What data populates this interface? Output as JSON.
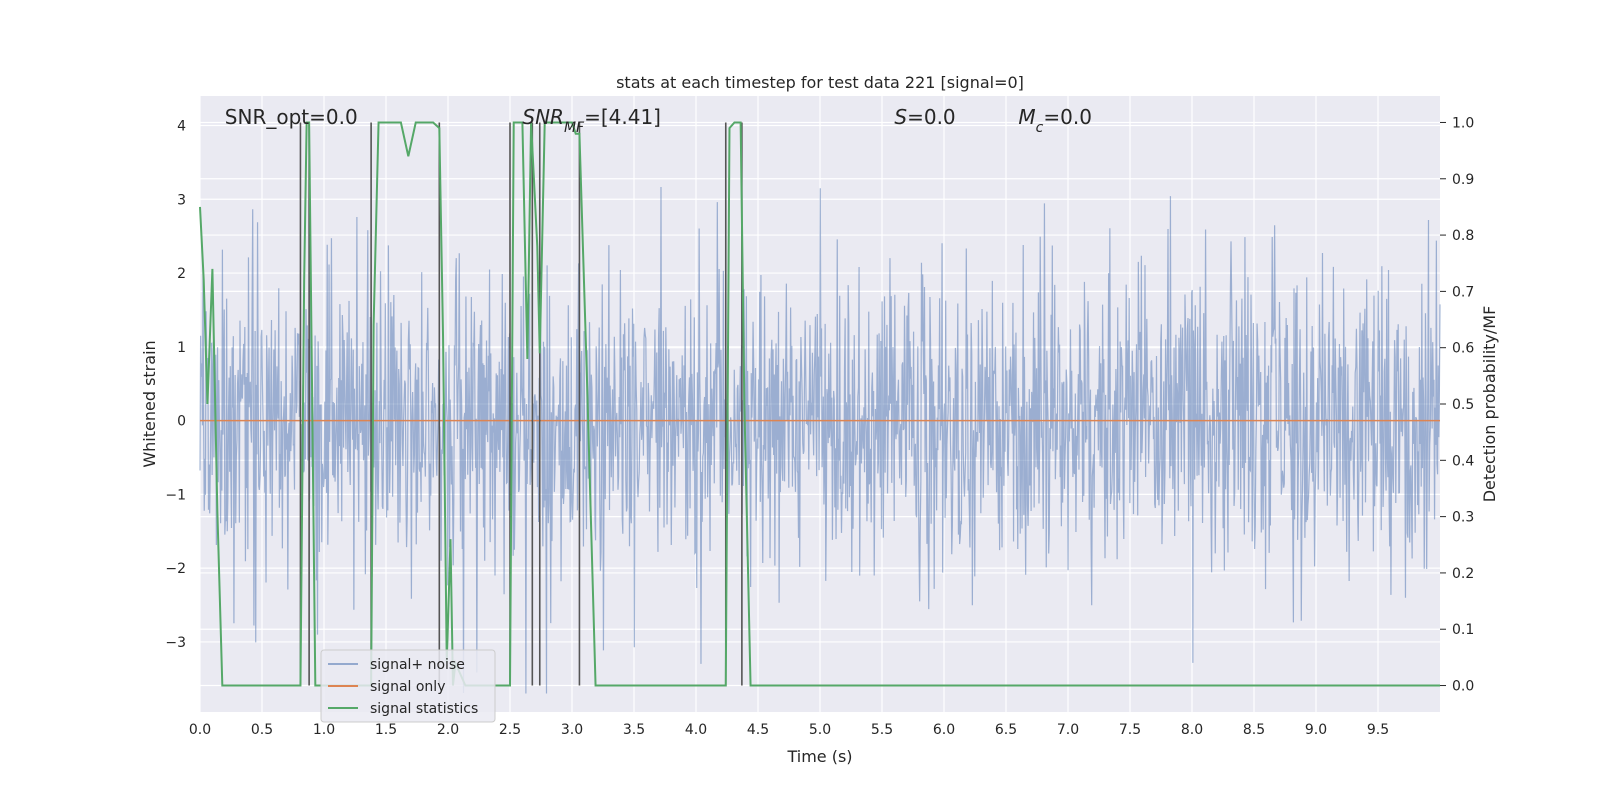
{
  "chart_data": {
    "type": "line",
    "title": "stats at each timestep for test data 221 [signal=0]",
    "xlabel": "Time (s)",
    "ylabel": "Whitened strain",
    "y2label": "Detection probability/MF",
    "xlim": [
      0,
      10
    ],
    "ylim": [
      -3.95,
      4.4
    ],
    "y2lim": [
      -0.047,
      1.047
    ],
    "x_ticks": [
      0.0,
      0.5,
      1.0,
      1.5,
      2.0,
      2.5,
      3.0,
      3.5,
      4.0,
      4.5,
      5.0,
      5.5,
      6.0,
      6.5,
      7.0,
      7.5,
      8.0,
      8.5,
      9.0,
      9.5
    ],
    "x_tick_labels": [
      "0.0",
      "0.5",
      "1.0",
      "1.5",
      "2.0",
      "2.5",
      "3.0",
      "3.5",
      "4.0",
      "4.5",
      "5.0",
      "5.5",
      "6.0",
      "6.5",
      "7.0",
      "7.5",
      "8.0",
      "8.5",
      "9.0",
      "9.5"
    ],
    "y_ticks": [
      -3,
      -2,
      -1,
      0,
      1,
      2,
      3,
      4
    ],
    "y_tick_labels": [
      "−3",
      "−2",
      "−1",
      "0",
      "1",
      "2",
      "3",
      "4"
    ],
    "y2_ticks": [
      0.0,
      0.1,
      0.2,
      0.3,
      0.4,
      0.5,
      0.6,
      0.7,
      0.8,
      0.9,
      1.0
    ],
    "y2_tick_labels": [
      "0.0",
      "0.1",
      "0.2",
      "0.3",
      "0.4",
      "0.5",
      "0.6",
      "0.7",
      "0.8",
      "0.9",
      "1.0"
    ],
    "grid": true,
    "legend_position": "lower-left",
    "legend": [
      {
        "label": "signal+ noise",
        "color": "#4c72b0"
      },
      {
        "label": "signal only",
        "color": "#dd8452"
      },
      {
        "label": "signal statistics",
        "color": "#55a868"
      }
    ],
    "annotations": [
      {
        "parts": [
          {
            "text": "SNR_opt=0.0",
            "italic": false
          }
        ],
        "x": 0.2
      },
      {
        "parts": [
          {
            "text": "SNR",
            "italic": true
          },
          {
            "text": "MF",
            "italic": true,
            "sub": true
          },
          {
            "text": "=[4.41]",
            "italic": false
          }
        ],
        "x": 2.6
      },
      {
        "parts": [
          {
            "text": "S",
            "italic": true
          },
          {
            "text": "=0.0",
            "italic": false
          }
        ],
        "x": 5.6
      },
      {
        "parts": [
          {
            "text": "M",
            "italic": true
          },
          {
            "text": "c",
            "italic": true,
            "sub": true
          },
          {
            "text": "=0.0",
            "italic": false
          }
        ],
        "x": 6.6
      }
    ],
    "vertical_lines_x": [
      0.81,
      0.88,
      1.38,
      1.93,
      2.5,
      2.68,
      2.74,
      3.06,
      4.24,
      4.37
    ],
    "series": [
      {
        "name": "signal+ noise",
        "color": "#4c72b0",
        "note_values": "strain noise, approx. standard normal, dense sampling",
        "seed": 221,
        "n_samples": 2048,
        "std": 1.0,
        "x_range": [
          0,
          10
        ]
      },
      {
        "name": "signal only",
        "color": "#dd8452",
        "x": [
          0,
          10
        ],
        "y": [
          0,
          0
        ]
      },
      {
        "name": "signal statistics",
        "color": "#55a868",
        "axis": "right",
        "x": [
          0.0,
          0.03,
          0.06,
          0.1,
          0.14,
          0.18,
          0.81,
          0.84,
          0.86,
          0.88,
          0.9,
          0.93,
          1.38,
          1.4,
          1.44,
          1.62,
          1.68,
          1.74,
          1.88,
          1.93,
          1.96,
          1.99,
          2.02,
          2.04,
          2.06,
          2.1,
          2.14,
          2.2,
          2.5,
          2.53,
          2.6,
          2.64,
          2.67,
          2.72,
          2.74,
          2.78,
          2.8,
          2.83,
          2.92,
          3.0,
          3.03,
          3.06,
          3.12,
          3.19,
          4.24,
          4.27,
          4.31,
          4.36,
          4.39,
          4.44,
          10.0
        ],
        "y": [
          0.85,
          0.72,
          0.5,
          0.74,
          0.31,
          0.0,
          0.0,
          0.72,
          1.0,
          1.0,
          0.6,
          0.0,
          0.0,
          0.64,
          1.0,
          1.0,
          0.94,
          1.0,
          1.0,
          0.99,
          0.62,
          0.04,
          0.26,
          0.0,
          0.04,
          0.02,
          0.0,
          0.0,
          0.0,
          1.0,
          1.0,
          0.58,
          1.0,
          0.78,
          0.59,
          1.0,
          1.0,
          1.0,
          1.0,
          1.0,
          0.98,
          0.98,
          0.55,
          0.0,
          0.0,
          0.99,
          1.0,
          1.0,
          0.5,
          0.0,
          0.0
        ]
      }
    ]
  }
}
